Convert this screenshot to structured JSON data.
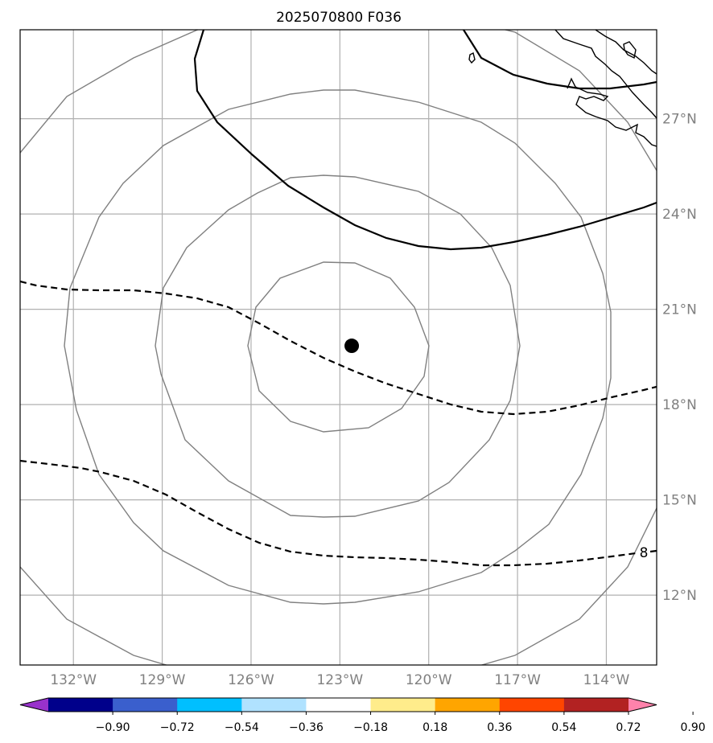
{
  "title": "2025070800 F036",
  "map": {
    "lon_range": [
      -133.8,
      -112.3
    ],
    "lat_range": [
      9.8,
      29.8
    ],
    "lon_ticks": [
      {
        "value": -132,
        "label": "132°W"
      },
      {
        "value": -129,
        "label": "129°W"
      },
      {
        "value": -126,
        "label": "126°W"
      },
      {
        "value": -123,
        "label": "123°W"
      },
      {
        "value": -120,
        "label": "120°W"
      },
      {
        "value": -117,
        "label": "117°W"
      },
      {
        "value": -114,
        "label": "114°W"
      }
    ],
    "lat_ticks": [
      {
        "value": 27,
        "label": "27°N"
      },
      {
        "value": 24,
        "label": "24°N"
      },
      {
        "value": 21,
        "label": "21°N"
      },
      {
        "value": 18,
        "label": "18°N"
      },
      {
        "value": 15,
        "label": "15°N"
      },
      {
        "value": 12,
        "label": "12°N"
      }
    ],
    "grid": true,
    "center_marker": {
      "lon": -122.6,
      "lat": 19.85
    },
    "contour_label": "8",
    "colors": {
      "range_ring": "#808080",
      "gridline": "#b0b0b0",
      "contour": "#000000"
    }
  },
  "colorbar": {
    "labels": [
      "−0.90",
      "−0.72",
      "−0.54",
      "−0.36",
      "−0.18",
      "0.18",
      "0.36",
      "0.54",
      "0.72",
      "0.90"
    ],
    "colors": [
      "#9932cc",
      "#00008b",
      "#3a5fcd",
      "#00bfff",
      "#b0e2ff",
      "#ffffff",
      "#ffec8b",
      "#ffa500",
      "#ff4500",
      "#b22222",
      "#ff82ab"
    ]
  }
}
